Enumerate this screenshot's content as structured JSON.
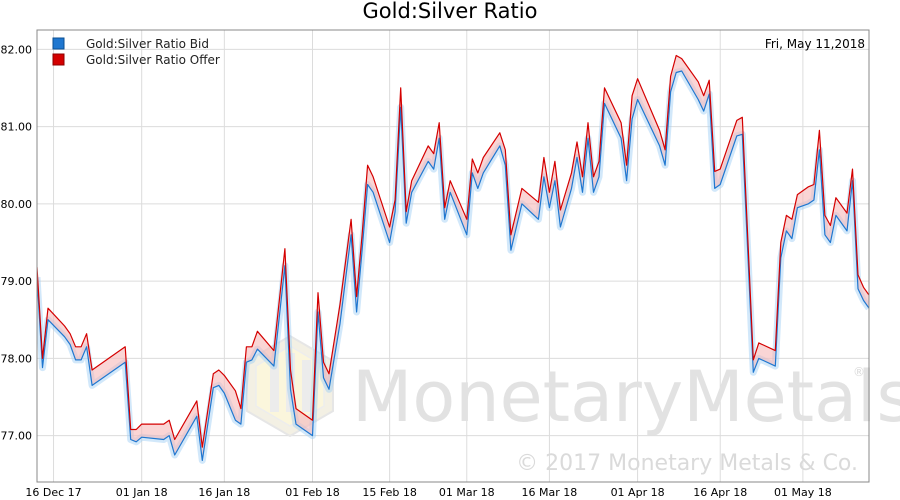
{
  "chart_data": {
    "type": "line",
    "title": "Gold:Silver Ratio",
    "date_label": "Fri, May 11,2018",
    "ylim": [
      76.4,
      82.25
    ],
    "y_ticks": [
      "82.00",
      "81.00",
      "80.00",
      "79.00",
      "78.00",
      "77.00"
    ],
    "x_ticks": [
      "16 Dec 17",
      "01 Jan 18",
      "16 Jan 18",
      "01 Feb 18",
      "15 Feb 18",
      "01 Mar 18",
      "16 Mar 18",
      "01 Apr 18",
      "16 Apr 18",
      "01 May 18"
    ],
    "grid": true,
    "legend_position": "top-left",
    "watermark": {
      "brand": "MonetaryMetals",
      "copyright": "© 2017 Monetary Metals & Co.",
      "registered": "®"
    },
    "series": [
      {
        "name": "Gold:Silver Ratio Bid",
        "color": "#1f77d0",
        "points": [
          [
            "2017-12-13",
            79.05
          ],
          [
            "2017-12-14",
            77.88
          ],
          [
            "2017-12-15",
            78.5
          ],
          [
            "2017-12-18",
            78.28
          ],
          [
            "2017-12-19",
            78.18
          ],
          [
            "2017-12-20",
            77.98
          ],
          [
            "2017-12-21",
            77.98
          ],
          [
            "2017-12-22",
            78.15
          ],
          [
            "2017-12-23",
            77.65
          ],
          [
            "2017-12-29",
            77.95
          ],
          [
            "2017-12-30",
            76.95
          ],
          [
            "2017-12-31",
            76.92
          ],
          [
            "2018-01-01",
            76.98
          ],
          [
            "2018-01-05",
            76.95
          ],
          [
            "2018-01-06",
            77.0
          ],
          [
            "2018-01-07",
            76.75
          ],
          [
            "2018-01-11",
            77.25
          ],
          [
            "2018-01-12",
            76.68
          ],
          [
            "2018-01-14",
            77.62
          ],
          [
            "2018-01-15",
            77.65
          ],
          [
            "2018-01-16",
            77.55
          ],
          [
            "2018-01-18",
            77.2
          ],
          [
            "2018-01-19",
            77.15
          ],
          [
            "2018-01-20",
            77.95
          ],
          [
            "2018-01-21",
            77.98
          ],
          [
            "2018-01-22",
            78.12
          ],
          [
            "2018-01-25",
            77.9
          ],
          [
            "2018-01-27",
            79.2
          ],
          [
            "2018-01-28",
            77.6
          ],
          [
            "2018-01-29",
            77.15
          ],
          [
            "2018-02-01",
            77.0
          ],
          [
            "2018-02-02",
            78.6
          ],
          [
            "2018-02-03",
            77.75
          ],
          [
            "2018-02-04",
            77.6
          ],
          [
            "2018-02-06",
            78.45
          ],
          [
            "2018-02-08",
            79.6
          ],
          [
            "2018-02-09",
            78.6
          ],
          [
            "2018-02-10",
            79.4
          ],
          [
            "2018-02-11",
            80.25
          ],
          [
            "2018-02-12",
            80.15
          ],
          [
            "2018-02-15",
            79.5
          ],
          [
            "2018-02-16",
            79.9
          ],
          [
            "2018-02-17",
            81.25
          ],
          [
            "2018-02-18",
            79.75
          ],
          [
            "2018-02-19",
            80.15
          ],
          [
            "2018-02-22",
            80.55
          ],
          [
            "2018-02-23",
            80.45
          ],
          [
            "2018-02-24",
            80.85
          ],
          [
            "2018-02-25",
            79.8
          ],
          [
            "2018-02-26",
            80.15
          ],
          [
            "2018-03-01",
            79.6
          ],
          [
            "2018-03-02",
            80.4
          ],
          [
            "2018-03-03",
            80.2
          ],
          [
            "2018-03-04",
            80.4
          ],
          [
            "2018-03-07",
            80.75
          ],
          [
            "2018-03-08",
            80.5
          ],
          [
            "2018-03-09",
            79.4
          ],
          [
            "2018-03-10",
            79.7
          ],
          [
            "2018-03-11",
            80.0
          ],
          [
            "2018-03-14",
            79.8
          ],
          [
            "2018-03-15",
            80.35
          ],
          [
            "2018-03-16",
            79.95
          ],
          [
            "2018-03-17",
            80.3
          ],
          [
            "2018-03-18",
            79.7
          ],
          [
            "2018-03-20",
            80.2
          ],
          [
            "2018-03-21",
            80.6
          ],
          [
            "2018-03-22",
            80.15
          ],
          [
            "2018-03-23",
            80.85
          ],
          [
            "2018-03-24",
            80.15
          ],
          [
            "2018-03-25",
            80.35
          ],
          [
            "2018-03-26",
            81.3
          ],
          [
            "2018-03-29",
            80.85
          ],
          [
            "2018-03-30",
            80.3
          ],
          [
            "2018-03-31",
            81.1
          ],
          [
            "2018-04-01",
            81.35
          ],
          [
            "2018-04-05",
            80.75
          ],
          [
            "2018-04-06",
            80.5
          ],
          [
            "2018-04-07",
            81.45
          ],
          [
            "2018-04-08",
            81.7
          ],
          [
            "2018-04-09",
            81.72
          ],
          [
            "2018-04-12",
            81.35
          ],
          [
            "2018-04-13",
            81.2
          ],
          [
            "2018-04-14",
            81.42
          ],
          [
            "2018-04-15",
            80.2
          ],
          [
            "2018-04-16",
            80.25
          ],
          [
            "2018-04-19",
            80.88
          ],
          [
            "2018-04-20",
            80.9
          ],
          [
            "2018-04-22",
            77.82
          ],
          [
            "2018-04-23",
            78.0
          ],
          [
            "2018-04-26",
            77.9
          ],
          [
            "2018-04-27",
            79.3
          ],
          [
            "2018-04-28",
            79.65
          ],
          [
            "2018-04-29",
            79.55
          ],
          [
            "2018-04-30",
            79.95
          ],
          [
            "2018-05-02",
            80.0
          ],
          [
            "2018-05-03",
            80.05
          ],
          [
            "2018-05-04",
            80.7
          ],
          [
            "2018-05-05",
            79.6
          ],
          [
            "2018-05-06",
            79.5
          ],
          [
            "2018-05-07",
            79.85
          ],
          [
            "2018-05-09",
            79.65
          ],
          [
            "2018-05-10",
            80.3
          ],
          [
            "2018-05-11",
            78.9
          ],
          [
            "2018-05-12",
            78.75
          ],
          [
            "2018-05-13",
            78.65
          ]
        ]
      },
      {
        "name": "Gold:Silver Ratio Offer",
        "color": "#d40000",
        "points": [
          [
            "2017-12-13",
            79.18
          ],
          [
            "2017-12-14",
            78.0
          ],
          [
            "2017-12-15",
            78.65
          ],
          [
            "2017-12-18",
            78.42
          ],
          [
            "2017-12-19",
            78.32
          ],
          [
            "2017-12-20",
            78.15
          ],
          [
            "2017-12-21",
            78.15
          ],
          [
            "2017-12-22",
            78.32
          ],
          [
            "2017-12-23",
            77.85
          ],
          [
            "2017-12-29",
            78.15
          ],
          [
            "2017-12-30",
            77.08
          ],
          [
            "2017-12-31",
            77.08
          ],
          [
            "2018-01-01",
            77.15
          ],
          [
            "2018-01-05",
            77.15
          ],
          [
            "2018-01-06",
            77.2
          ],
          [
            "2018-01-07",
            76.95
          ],
          [
            "2018-01-11",
            77.45
          ],
          [
            "2018-01-12",
            76.85
          ],
          [
            "2018-01-14",
            77.8
          ],
          [
            "2018-01-15",
            77.85
          ],
          [
            "2018-01-16",
            77.78
          ],
          [
            "2018-01-18",
            77.58
          ],
          [
            "2018-01-19",
            77.35
          ],
          [
            "2018-01-20",
            78.15
          ],
          [
            "2018-01-21",
            78.15
          ],
          [
            "2018-01-22",
            78.35
          ],
          [
            "2018-01-25",
            78.1
          ],
          [
            "2018-01-27",
            79.42
          ],
          [
            "2018-01-28",
            77.85
          ],
          [
            "2018-01-29",
            77.35
          ],
          [
            "2018-02-01",
            77.2
          ],
          [
            "2018-02-02",
            78.85
          ],
          [
            "2018-02-03",
            77.95
          ],
          [
            "2018-02-04",
            77.8
          ],
          [
            "2018-02-06",
            78.7
          ],
          [
            "2018-02-08",
            79.8
          ],
          [
            "2018-02-09",
            78.8
          ],
          [
            "2018-02-10",
            79.6
          ],
          [
            "2018-02-11",
            80.5
          ],
          [
            "2018-02-12",
            80.35
          ],
          [
            "2018-02-15",
            79.7
          ],
          [
            "2018-02-16",
            80.05
          ],
          [
            "2018-02-17",
            81.5
          ],
          [
            "2018-02-18",
            79.9
          ],
          [
            "2018-02-19",
            80.3
          ],
          [
            "2018-02-22",
            80.75
          ],
          [
            "2018-02-23",
            80.65
          ],
          [
            "2018-02-24",
            81.05
          ],
          [
            "2018-02-25",
            79.95
          ],
          [
            "2018-02-26",
            80.3
          ],
          [
            "2018-03-01",
            79.8
          ],
          [
            "2018-03-02",
            80.58
          ],
          [
            "2018-03-03",
            80.4
          ],
          [
            "2018-03-04",
            80.6
          ],
          [
            "2018-03-07",
            80.92
          ],
          [
            "2018-03-08",
            80.7
          ],
          [
            "2018-03-09",
            79.6
          ],
          [
            "2018-03-10",
            79.9
          ],
          [
            "2018-03-11",
            80.2
          ],
          [
            "2018-03-14",
            80.02
          ],
          [
            "2018-03-15",
            80.6
          ],
          [
            "2018-03-16",
            80.15
          ],
          [
            "2018-03-17",
            80.55
          ],
          [
            "2018-03-18",
            79.92
          ],
          [
            "2018-03-20",
            80.4
          ],
          [
            "2018-03-21",
            80.8
          ],
          [
            "2018-03-22",
            80.35
          ],
          [
            "2018-03-23",
            81.05
          ],
          [
            "2018-03-24",
            80.35
          ],
          [
            "2018-03-25",
            80.55
          ],
          [
            "2018-03-26",
            81.5
          ],
          [
            "2018-03-29",
            81.05
          ],
          [
            "2018-03-30",
            80.5
          ],
          [
            "2018-03-31",
            81.4
          ],
          [
            "2018-04-01",
            81.62
          ],
          [
            "2018-04-05",
            80.95
          ],
          [
            "2018-04-06",
            80.7
          ],
          [
            "2018-04-07",
            81.65
          ],
          [
            "2018-04-08",
            81.92
          ],
          [
            "2018-04-09",
            81.88
          ],
          [
            "2018-04-12",
            81.58
          ],
          [
            "2018-04-13",
            81.4
          ],
          [
            "2018-04-14",
            81.6
          ],
          [
            "2018-04-15",
            80.42
          ],
          [
            "2018-04-16",
            80.45
          ],
          [
            "2018-04-19",
            81.08
          ],
          [
            "2018-04-20",
            81.12
          ],
          [
            "2018-04-22",
            77.98
          ],
          [
            "2018-04-23",
            78.2
          ],
          [
            "2018-04-26",
            78.1
          ],
          [
            "2018-04-27",
            79.5
          ],
          [
            "2018-04-28",
            79.85
          ],
          [
            "2018-04-29",
            79.8
          ],
          [
            "2018-04-30",
            80.12
          ],
          [
            "2018-05-02",
            80.22
          ],
          [
            "2018-05-03",
            80.25
          ],
          [
            "2018-05-04",
            80.95
          ],
          [
            "2018-05-05",
            79.85
          ],
          [
            "2018-05-06",
            79.72
          ],
          [
            "2018-05-07",
            80.08
          ],
          [
            "2018-05-09",
            79.88
          ],
          [
            "2018-05-10",
            80.45
          ],
          [
            "2018-05-11",
            79.08
          ],
          [
            "2018-05-12",
            78.92
          ],
          [
            "2018-05-13",
            78.82
          ]
        ]
      }
    ]
  }
}
